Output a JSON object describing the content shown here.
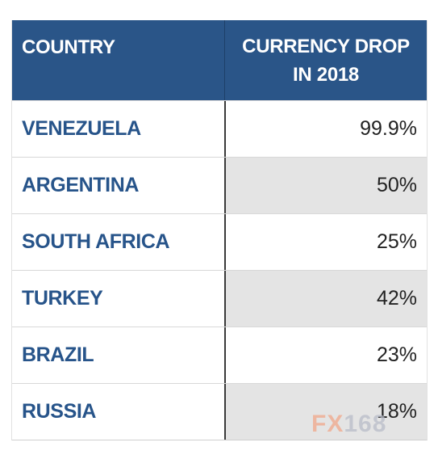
{
  "table": {
    "header": {
      "country": "COUNTRY",
      "drop_line1": "CURRENCY DROP",
      "drop_line2": "IN 2018"
    },
    "rows": [
      {
        "country": "VENEZUELA",
        "drop": "99.9%"
      },
      {
        "country": "ARGENTINA",
        "drop": "50%"
      },
      {
        "country": "SOUTH AFRICA",
        "drop": "25%"
      },
      {
        "country": "TURKEY",
        "drop": "42%"
      },
      {
        "country": "BRAZIL",
        "drop": "23%"
      },
      {
        "country": "RUSSIA",
        "drop": "18%"
      }
    ]
  },
  "watermark": {
    "prefix": "FX",
    "number": "168"
  },
  "colors": {
    "header_bg": "#2a5588",
    "country_text": "#27548a",
    "shaded_cell": "#e4e4e4",
    "watermark_fx": "#f0a78a",
    "watermark_num": "#b8bcc8"
  }
}
